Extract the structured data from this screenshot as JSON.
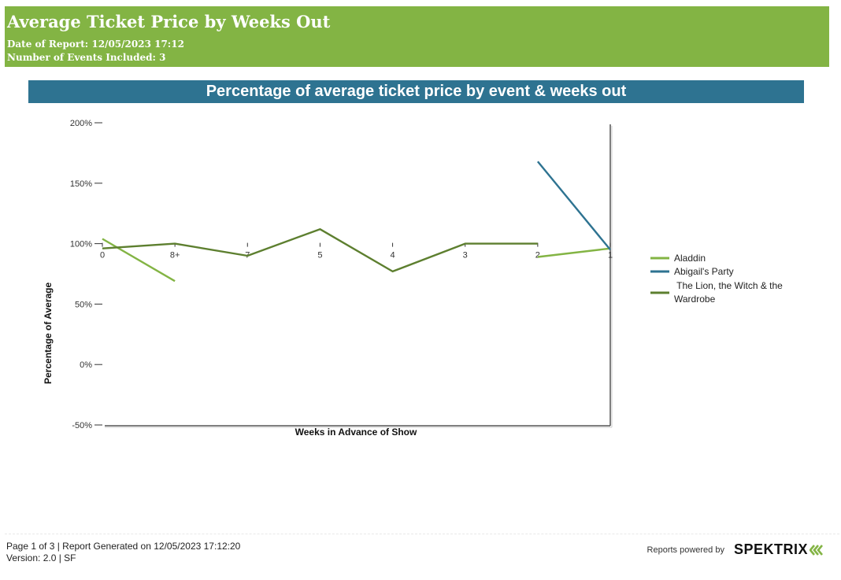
{
  "header": {
    "title": "Average Ticket Price by Weeks Out",
    "date_label": "Date of Report: 12/05/2023 17:12",
    "events_label": "Number of Events Included: 3",
    "bg_color": "#83b444"
  },
  "banner": {
    "title": "Percentage of average ticket price by event & weeks out",
    "bg_color": "#2e7391"
  },
  "chart_data": {
    "type": "line",
    "title": "Percentage of average ticket price by event & weeks out",
    "xlabel": "Weeks in Advance of Show",
    "ylabel": "Percentage of Average",
    "categories": [
      "0",
      "8+",
      "7",
      "5",
      "4",
      "3",
      "2",
      "1"
    ],
    "ylim": [
      -50,
      200
    ],
    "yticks": [
      200,
      150,
      100,
      50,
      0,
      -50
    ],
    "ytick_labels": [
      "200%",
      "150%",
      "100%",
      "50%",
      "0%",
      "-50%"
    ],
    "legend_position": "right",
    "grid": false,
    "series": [
      {
        "name": "Aladdin",
        "color": "#83b444",
        "segments": [
          {
            "x": [
              "0",
              "8+"
            ],
            "y": [
              104,
              69
            ]
          },
          {
            "x": [
              "2",
              "1"
            ],
            "y": [
              89,
              96
            ]
          }
        ]
      },
      {
        "name": "Abigail's Party",
        "color": "#2e7391",
        "segments": [
          {
            "x": [
              "2",
              "1"
            ],
            "y": [
              168,
              95
            ]
          }
        ]
      },
      {
        "name": "The Lion, the Witch & the Wardrobe",
        "color": "#5d7f2f",
        "segments": [
          {
            "x": [
              "0",
              "8+",
              "7",
              "5",
              "4",
              "3",
              "2"
            ],
            "y": [
              96,
              100,
              90,
              112,
              77,
              100,
              100
            ]
          }
        ]
      }
    ]
  },
  "legend": {
    "items": [
      {
        "label": "Aladdin"
      },
      {
        "label": "Abigail's Party"
      },
      {
        "label_line1": " The Lion, the Witch & the",
        "label_line2": "Wardrobe"
      }
    ]
  },
  "footer": {
    "page_info": "Page 1 of 3 | Report Generated on 12/05/2023 17:12:20",
    "version": "Version: 2.0 | SF",
    "powered_by": "Reports powered by",
    "brand": "SPEKTRIX",
    "brand_accent_color": "#83b444"
  }
}
